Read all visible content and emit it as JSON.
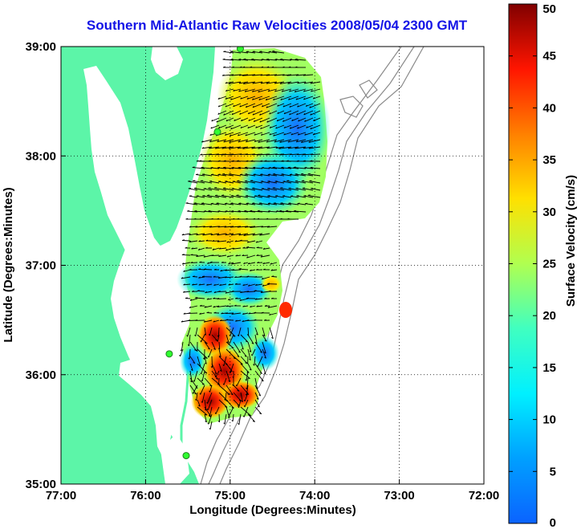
{
  "title": "Southern Mid-Atlantic Raw Velocities 2008/05/04 2300 GMT",
  "map": {
    "x_axis": {
      "label": "Longitude (Degrees:Minutes)",
      "range": [
        -77,
        -72
      ],
      "ticks": [
        {
          "value": -77,
          "label": "77:00"
        },
        {
          "value": -76,
          "label": "76:00"
        },
        {
          "value": -75,
          "label": "75:00"
        },
        {
          "value": -74,
          "label": "74:00"
        },
        {
          "value": -73,
          "label": "73:00"
        },
        {
          "value": -72,
          "label": "72:00"
        }
      ]
    },
    "y_axis": {
      "label": "Latitude (Degrees:Minutes)",
      "range": [
        35,
        39
      ],
      "ticks": [
        {
          "value": 35,
          "label": "35:00"
        },
        {
          "value": 36,
          "label": "36:00"
        },
        {
          "value": 37,
          "label": "37:00"
        },
        {
          "value": 38,
          "label": "38:00"
        },
        {
          "value": 39,
          "label": "39:00"
        }
      ]
    },
    "grid": "dotted",
    "land_color": "#5cf5a8",
    "bathymetry_color": "#8a8a8a",
    "stations": [
      {
        "lon": -74.88,
        "lat": 38.98
      },
      {
        "lon": -75.15,
        "lat": 38.22
      },
      {
        "lon": -75.72,
        "lat": 36.19
      },
      {
        "lon": -75.52,
        "lat": 35.26
      }
    ]
  },
  "colorbar": {
    "label": "Surface Velocity (cm/s)",
    "min": 0,
    "max": 50,
    "ticks": [
      {
        "value": 0,
        "label": "0"
      },
      {
        "value": 5,
        "label": "5"
      },
      {
        "value": 10,
        "label": "10"
      },
      {
        "value": 15,
        "label": "15"
      },
      {
        "value": 20,
        "label": "20"
      },
      {
        "value": 25,
        "label": "25"
      },
      {
        "value": 30,
        "label": "30"
      },
      {
        "value": 35,
        "label": "35"
      },
      {
        "value": 40,
        "label": "40"
      },
      {
        "value": 45,
        "label": "45"
      },
      {
        "value": 50,
        "label": "50"
      }
    ],
    "colormap": "jet"
  },
  "velocity_regions": [
    {
      "name": "northern-yellow-band",
      "speed": 30
    },
    {
      "name": "offshore-blue-patch",
      "speed": 8
    },
    {
      "name": "southern-red-jet",
      "speed": 47
    }
  ]
}
